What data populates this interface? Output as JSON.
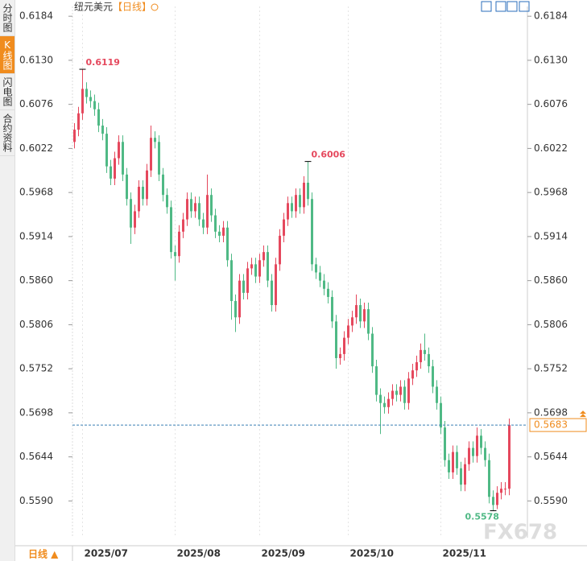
{
  "chart_data": {
    "type": "candlestick",
    "title": "纽元美元",
    "period_tag": "【日线】",
    "period_button": "日线 ▲",
    "watermark": "FX678",
    "tabs": [
      "分时图",
      "K线图",
      "闪电图",
      "合约资料"
    ],
    "categories": [
      null,
      null,
      "2025/07",
      null,
      null,
      null,
      null,
      null,
      null,
      null,
      null,
      null,
      null,
      null,
      null,
      null,
      null,
      null,
      null,
      null,
      null,
      null,
      null,
      null,
      null,
      "2025/08",
      null,
      null,
      null,
      null,
      null,
      null,
      null,
      null,
      null,
      null,
      null,
      null,
      null,
      null,
      null,
      null,
      null,
      null,
      null,
      null,
      "2025/09",
      null,
      null,
      null,
      null,
      null,
      null,
      null,
      null,
      null,
      null,
      null,
      null,
      null,
      null,
      null,
      null,
      null,
      null,
      null,
      null,
      null,
      "2025/10",
      null,
      null,
      null,
      null,
      null,
      null,
      null,
      null,
      null,
      null,
      null,
      null,
      null,
      null,
      null,
      null,
      null,
      null,
      null,
      null,
      null,
      null,
      "2025/11",
      null,
      null,
      null,
      null,
      null,
      null,
      null,
      null,
      null,
      null,
      null,
      null,
      null,
      null,
      null,
      null,
      null
    ],
    "open": [
      0.603,
      0.6045,
      0.6065,
      0.6095,
      0.6085,
      0.608,
      0.607,
      0.605,
      0.604,
      0.6,
      0.5985,
      0.601,
      0.603,
      0.599,
      0.596,
      0.5925,
      0.5945,
      0.5975,
      0.596,
      0.5995,
      0.6035,
      0.603,
      0.599,
      0.5965,
      0.595,
      0.5895,
      0.589,
      0.592,
      0.5935,
      0.596,
      0.5945,
      0.5955,
      0.5935,
      0.5925,
      0.5965,
      0.594,
      0.592,
      0.5915,
      0.5925,
      0.5885,
      0.5835,
      0.5815,
      0.586,
      0.5845,
      0.5875,
      0.588,
      0.5865,
      0.5885,
      0.5895,
      0.586,
      0.583,
      0.588,
      0.5915,
      0.5935,
      0.5955,
      0.5945,
      0.5965,
      0.595,
      0.598,
      0.596,
      0.588,
      0.587,
      0.586,
      0.585,
      0.584,
      0.581,
      0.5765,
      0.577,
      0.579,
      0.5805,
      0.5815,
      0.583,
      0.581,
      0.5825,
      0.5795,
      0.5755,
      0.572,
      0.571,
      0.5705,
      0.5715,
      0.5725,
      0.572,
      0.573,
      0.571,
      0.574,
      0.575,
      0.576,
      0.5775,
      0.577,
      0.5755,
      0.573,
      0.571,
      0.568,
      0.564,
      0.5625,
      0.565,
      0.563,
      0.561,
      0.5635,
      0.5655,
      0.5645,
      0.567,
      0.5655,
      0.564,
      0.5595,
      0.5585,
      0.56,
      0.5605,
      0.5605
    ],
    "high": [
      0.6053,
      0.6073,
      0.6119,
      0.6103,
      0.6093,
      0.6088,
      0.6078,
      0.6058,
      0.6048,
      0.6008,
      0.6018,
      0.6038,
      0.6038,
      0.5998,
      0.5968,
      0.5953,
      0.5983,
      0.5983,
      0.6003,
      0.605,
      0.6043,
      0.6038,
      0.5998,
      0.5973,
      0.5958,
      0.5903,
      0.5928,
      0.5943,
      0.5968,
      0.5968,
      0.5963,
      0.5963,
      0.5943,
      0.599,
      0.5973,
      0.5948,
      0.5928,
      0.5933,
      0.5933,
      0.5893,
      0.5843,
      0.5868,
      0.5868,
      0.5883,
      0.5888,
      0.5888,
      0.5893,
      0.5903,
      0.5903,
      0.5868,
      0.5888,
      0.5923,
      0.5943,
      0.5963,
      0.5963,
      0.5973,
      0.5973,
      0.5988,
      0.6006,
      0.5968,
      0.5888,
      0.5878,
      0.5868,
      0.5858,
      0.5848,
      0.5818,
      0.5778,
      0.5798,
      0.5813,
      0.5823,
      0.5843,
      0.5838,
      0.5833,
      0.5833,
      0.5803,
      0.5763,
      0.5728,
      0.5718,
      0.5723,
      0.5733,
      0.5733,
      0.5738,
      0.5738,
      0.5748,
      0.5758,
      0.5768,
      0.5783,
      0.5795,
      0.5778,
      0.5763,
      0.5738,
      0.5718,
      0.5688,
      0.5648,
      0.5658,
      0.5658,
      0.5638,
      0.5643,
      0.5663,
      0.5663,
      0.568,
      0.5678,
      0.5663,
      0.5648,
      0.5603,
      0.5608,
      0.5613,
      0.5613,
      0.5691
    ],
    "low": [
      0.6022,
      0.6037,
      0.6057,
      0.6077,
      0.6072,
      0.6062,
      0.6042,
      0.6032,
      0.5992,
      0.5977,
      0.5977,
      0.6002,
      0.5982,
      0.5952,
      0.5905,
      0.5917,
      0.5937,
      0.5952,
      0.5952,
      0.5987,
      0.6022,
      0.5982,
      0.5957,
      0.5942,
      0.5887,
      0.586,
      0.5882,
      0.5912,
      0.5927,
      0.5937,
      0.5937,
      0.5927,
      0.5917,
      0.5917,
      0.5932,
      0.5912,
      0.5907,
      0.5907,
      0.5877,
      0.5812,
      0.5797,
      0.5807,
      0.5837,
      0.5837,
      0.5867,
      0.5857,
      0.5857,
      0.5877,
      0.5852,
      0.5822,
      0.5822,
      0.5872,
      0.5907,
      0.5927,
      0.5937,
      0.5937,
      0.5942,
      0.5942,
      0.5952,
      0.5872,
      0.5862,
      0.5852,
      0.5842,
      0.5832,
      0.5802,
      0.5752,
      0.5757,
      0.5762,
      0.5782,
      0.5797,
      0.5807,
      0.5802,
      0.5802,
      0.5787,
      0.5747,
      0.5712,
      0.5672,
      0.5697,
      0.5697,
      0.5707,
      0.5712,
      0.5712,
      0.5702,
      0.5702,
      0.5732,
      0.5742,
      0.5752,
      0.5762,
      0.5747,
      0.5722,
      0.5702,
      0.5672,
      0.5632,
      0.5617,
      0.5617,
      0.5622,
      0.5602,
      0.5602,
      0.5627,
      0.5637,
      0.5637,
      0.5647,
      0.5632,
      0.5587,
      0.5578,
      0.558,
      0.5592,
      0.5597,
      0.5597
    ],
    "close": [
      0.6045,
      0.6065,
      0.6095,
      0.6085,
      0.608,
      0.607,
      0.605,
      0.604,
      0.6,
      0.5985,
      0.601,
      0.603,
      0.599,
      0.596,
      0.5925,
      0.5945,
      0.5975,
      0.596,
      0.5995,
      0.6035,
      0.603,
      0.599,
      0.5965,
      0.595,
      0.5895,
      0.589,
      0.592,
      0.5935,
      0.596,
      0.5945,
      0.5955,
      0.5935,
      0.5925,
      0.5965,
      0.594,
      0.592,
      0.5915,
      0.5925,
      0.5885,
      0.5835,
      0.5815,
      0.586,
      0.5845,
      0.5875,
      0.588,
      0.5865,
      0.5885,
      0.5895,
      0.586,
      0.583,
      0.588,
      0.5915,
      0.5935,
      0.5955,
      0.5945,
      0.5965,
      0.595,
      0.598,
      0.596,
      0.588,
      0.587,
      0.586,
      0.585,
      0.584,
      0.581,
      0.5765,
      0.577,
      0.579,
      0.5805,
      0.5815,
      0.583,
      0.581,
      0.5825,
      0.5795,
      0.5755,
      0.572,
      0.571,
      0.5705,
      0.5715,
      0.5725,
      0.572,
      0.573,
      0.571,
      0.574,
      0.575,
      0.576,
      0.5775,
      0.577,
      0.5755,
      0.573,
      0.571,
      0.568,
      0.564,
      0.5625,
      0.565,
      0.563,
      0.561,
      0.5635,
      0.5655,
      0.5645,
      0.567,
      0.5655,
      0.564,
      0.5595,
      0.5585,
      0.56,
      0.5605,
      0.5605,
      0.5683
    ],
    "up_color": "#e5485d",
    "down_color": "#4fb985",
    "annotations": [
      0.6119,
      0.6006,
      0.5578
    ],
    "last_price": 0.5683,
    "ylim": [
      0.5545,
      0.6196
    ],
    "yticks": [
      0.6184,
      {
        "value": 0.613,
        "label": "0.6130"
      },
      0.6076,
      0.6022,
      0.5968,
      0.5914,
      {
        "value": 0.586,
        "label": "0.5860"
      },
      0.5806,
      0.5752,
      0.5698,
      0.5644,
      {
        "value": 0.559,
        "label": "0.5590"
      }
    ]
  }
}
